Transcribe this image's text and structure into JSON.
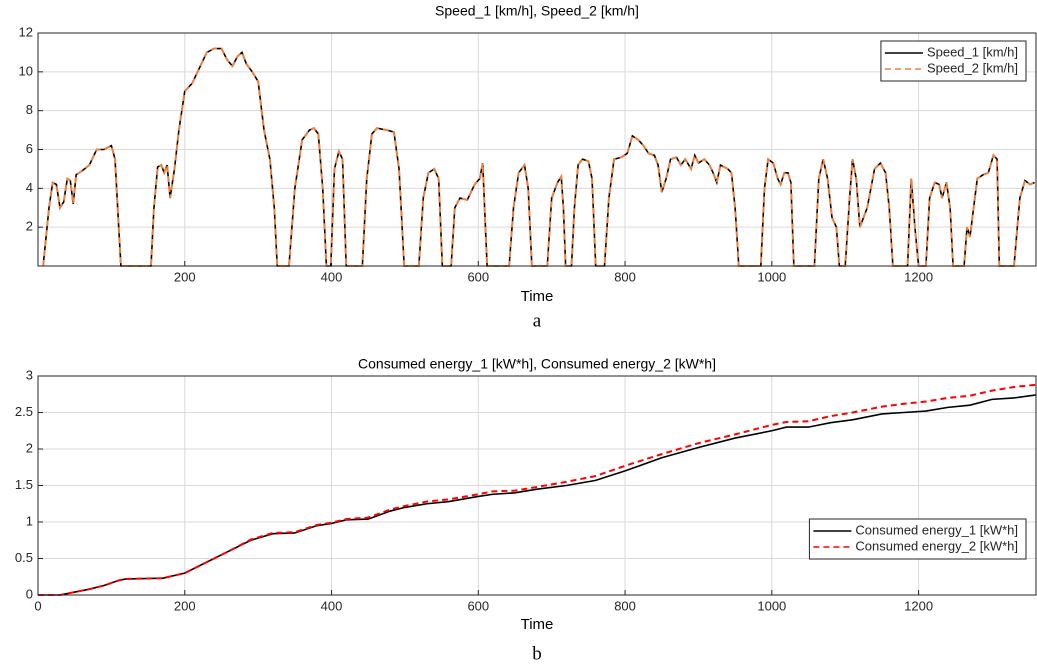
{
  "chart_data": [
    {
      "type": "line",
      "title": "Speed_1 [km/h], Speed_2 [km/h]",
      "x_label": "Time",
      "caption": "a",
      "x": [
        7,
        15,
        20,
        25,
        30,
        35,
        40,
        44,
        48,
        52,
        60,
        70,
        80,
        90,
        95,
        100,
        105,
        110,
        113,
        154,
        158,
        163,
        168,
        172,
        176,
        180,
        186,
        192,
        200,
        210,
        220,
        230,
        240,
        250,
        258,
        265,
        272,
        278,
        284,
        292,
        300,
        308,
        316,
        322,
        326,
        342,
        350,
        360,
        370,
        376,
        382,
        388,
        393,
        399,
        404,
        410,
        415,
        420,
        442,
        448,
        455,
        462,
        475,
        485,
        492,
        499,
        519,
        525,
        532,
        540,
        546,
        551,
        563,
        568,
        575,
        585,
        595,
        602,
        606,
        612,
        642,
        648,
        655,
        663,
        668,
        673,
        694,
        700,
        708,
        713,
        716,
        719,
        727,
        731,
        736,
        742,
        750,
        755,
        760,
        772,
        778,
        785,
        795,
        803,
        810,
        818,
        825,
        832,
        840,
        845,
        850,
        856,
        862,
        870,
        876,
        882,
        890,
        895,
        900,
        908,
        915,
        920,
        925,
        930,
        940,
        945,
        950,
        955,
        985,
        990,
        995,
        1002,
        1008,
        1012,
        1017,
        1022,
        1026,
        1030,
        1058,
        1064,
        1070,
        1076,
        1082,
        1088,
        1092,
        1100,
        1106,
        1110,
        1115,
        1120,
        1125,
        1130,
        1140,
        1148,
        1155,
        1160,
        1165,
        1185,
        1190,
        1195,
        1200,
        1210,
        1215,
        1222,
        1228,
        1232,
        1238,
        1243,
        1247,
        1262,
        1266,
        1270,
        1275,
        1280,
        1288,
        1295,
        1302,
        1307,
        1310,
        1330,
        1338,
        1345,
        1352,
        1358
      ],
      "series": [
        {
          "name": "Speed_1 [km/h]",
          "color": "#000000",
          "line_style": "solid",
          "values": [
            0,
            3,
            4.3,
            4.2,
            3,
            3.3,
            4.5,
            4.4,
            3.2,
            4.7,
            4.9,
            5.2,
            6,
            6,
            6.1,
            6.2,
            5.5,
            2,
            0,
            0,
            3,
            5.1,
            5.2,
            4.8,
            5.2,
            3.5,
            5,
            7,
            9,
            9.4,
            10.2,
            11,
            11.2,
            11.2,
            10.6,
            10.3,
            10.8,
            11,
            10.4,
            10,
            9.5,
            7,
            5.5,
            3,
            0,
            0,
            4,
            6.5,
            7,
            7.1,
            6.8,
            4,
            0,
            0,
            5,
            5.9,
            5.5,
            0,
            0,
            4.5,
            6.8,
            7.1,
            7,
            6.9,
            5,
            0,
            0,
            3.5,
            4.8,
            5,
            4.5,
            0,
            0,
            3,
            3.5,
            3.4,
            4.2,
            4.5,
            5.3,
            0,
            0,
            3,
            4.8,
            5.2,
            4,
            0,
            0,
            3.5,
            4.3,
            4.6,
            3,
            0,
            0,
            3,
            5.2,
            5.5,
            5.4,
            4.5,
            0,
            0,
            3.5,
            5.5,
            5.6,
            5.8,
            6.7,
            6.5,
            6.2,
            5.8,
            5.7,
            5.2,
            3.8,
            4.5,
            5.5,
            5.6,
            5.2,
            5.5,
            5,
            5.7,
            5.3,
            5.5,
            5.2,
            4.8,
            4.3,
            5.2,
            5,
            4.8,
            3,
            0,
            0,
            4,
            5.5,
            5.3,
            4.5,
            4.2,
            4.8,
            4.8,
            4.3,
            0,
            0,
            4.5,
            5.5,
            4.5,
            2.5,
            2,
            0,
            0,
            3.5,
            5.5,
            4.5,
            2,
            2.5,
            3,
            5,
            5.3,
            4.8,
            3,
            0,
            0,
            4.5,
            2,
            0,
            0,
            3.5,
            4.3,
            4.2,
            3.5,
            4.3,
            3,
            0,
            0,
            2,
            1.5,
            3,
            4.5,
            4.7,
            4.8,
            5.7,
            5.5,
            0,
            0,
            3.5,
            4.4,
            4.2,
            4.3
          ]
        },
        {
          "name": "Speed_2 [km/h]",
          "color": "#f07f3c",
          "line_style": "dashed",
          "values": [
            0,
            3,
            4.3,
            4.2,
            3,
            3.3,
            4.5,
            4.4,
            3.2,
            4.7,
            4.9,
            5.2,
            6,
            6,
            6.1,
            6.2,
            5.5,
            2,
            0,
            0,
            3,
            5.1,
            5.2,
            4.8,
            5.2,
            3.5,
            5,
            7,
            9,
            9.4,
            10.2,
            11,
            11.2,
            11.2,
            10.6,
            10.3,
            10.8,
            11,
            10.4,
            10,
            9.5,
            7,
            5.5,
            3,
            0,
            0,
            4,
            6.5,
            7,
            7.1,
            6.8,
            4,
            0,
            0,
            5,
            5.9,
            5.5,
            0,
            0,
            4.5,
            6.8,
            7.1,
            7,
            6.9,
            5,
            0,
            0,
            3.5,
            4.8,
            5,
            4.5,
            0,
            0,
            3,
            3.5,
            3.4,
            4.2,
            4.5,
            5.3,
            0,
            0,
            3,
            4.8,
            5.2,
            4,
            0,
            0,
            3.5,
            4.3,
            4.6,
            3,
            0,
            0,
            3,
            5.2,
            5.5,
            5.4,
            4.5,
            0,
            0,
            3.5,
            5.5,
            5.6,
            5.8,
            6.7,
            6.5,
            6.2,
            5.8,
            5.7,
            5.2,
            3.8,
            4.5,
            5.5,
            5.6,
            5.2,
            5.5,
            5,
            5.7,
            5.3,
            5.5,
            5.2,
            4.8,
            4.3,
            5.2,
            5,
            4.8,
            3,
            0,
            0,
            4,
            5.5,
            5.3,
            4.5,
            4.2,
            4.8,
            4.8,
            4.3,
            0,
            0,
            4.5,
            5.5,
            4.5,
            2.5,
            2,
            0,
            0,
            3.5,
            5.5,
            4.5,
            2,
            2.5,
            3,
            5,
            5.3,
            4.8,
            3,
            0,
            0,
            4.5,
            2,
            0,
            0,
            3.5,
            4.3,
            4.2,
            3.5,
            4.3,
            3,
            0,
            0,
            2,
            1.5,
            3,
            4.5,
            4.7,
            4.8,
            5.7,
            5.5,
            0,
            0,
            3.5,
            4.4,
            4.2,
            4.3
          ]
        }
      ],
      "xlim": [
        0,
        1360
      ],
      "xticks": [
        200,
        400,
        600,
        800,
        1000,
        1200
      ],
      "ylim": [
        0,
        12
      ],
      "yticks": [
        2,
        4,
        6,
        8,
        10,
        12
      ],
      "grid": true,
      "legend": "upper right"
    },
    {
      "type": "line",
      "title": "Consumed energy_1 [kW*h], Consumed energy_2 [kW*h]",
      "x_label": "Time",
      "caption": "b",
      "x": [
        0,
        30,
        50,
        70,
        90,
        110,
        120,
        170,
        200,
        230,
        260,
        290,
        320,
        350,
        380,
        400,
        420,
        450,
        480,
        500,
        530,
        560,
        600,
        620,
        650,
        680,
        720,
        760,
        800,
        850,
        900,
        950,
        1000,
        1020,
        1050,
        1080,
        1110,
        1150,
        1180,
        1210,
        1240,
        1270,
        1300,
        1330,
        1360
      ],
      "series": [
        {
          "name": "Consumed energy_1 [kW*h]",
          "color": "#000000",
          "line_style": "solid",
          "values": [
            0,
            0,
            0.04,
            0.08,
            0.13,
            0.2,
            0.22,
            0.23,
            0.3,
            0.45,
            0.6,
            0.75,
            0.84,
            0.85,
            0.95,
            0.98,
            1.03,
            1.04,
            1.15,
            1.2,
            1.25,
            1.28,
            1.35,
            1.38,
            1.4,
            1.45,
            1.5,
            1.57,
            1.7,
            1.88,
            2.02,
            2.15,
            2.25,
            2.3,
            2.3,
            2.36,
            2.4,
            2.48,
            2.5,
            2.52,
            2.57,
            2.6,
            2.68,
            2.7,
            2.74
          ]
        },
        {
          "name": "Consumed energy_2 [kW*h]",
          "color": "#ff0000",
          "line_style": "dashed",
          "values": [
            0,
            0,
            0.04,
            0.08,
            0.13,
            0.2,
            0.22,
            0.23,
            0.3,
            0.45,
            0.6,
            0.76,
            0.85,
            0.86,
            0.96,
            0.99,
            1.04,
            1.06,
            1.17,
            1.22,
            1.28,
            1.31,
            1.38,
            1.42,
            1.43,
            1.48,
            1.55,
            1.63,
            1.77,
            1.93,
            2.08,
            2.2,
            2.33,
            2.37,
            2.38,
            2.45,
            2.5,
            2.58,
            2.62,
            2.65,
            2.7,
            2.73,
            2.8,
            2.85,
            2.88
          ]
        }
      ],
      "xlim": [
        0,
        1360
      ],
      "xticks": [
        0,
        200,
        400,
        600,
        800,
        1000,
        1200
      ],
      "ylim": [
        0,
        3
      ],
      "yticks": [
        0,
        0.5,
        1,
        1.5,
        2,
        2.5,
        3
      ],
      "grid": true,
      "legend": "lower right"
    }
  ]
}
